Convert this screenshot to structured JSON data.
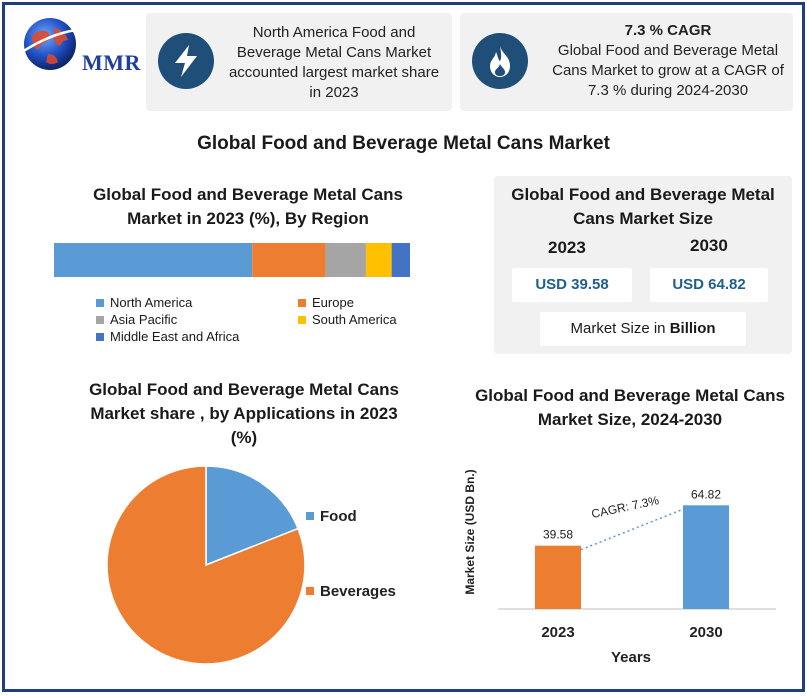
{
  "brand": {
    "logo_text": "MMR"
  },
  "callouts": {
    "region": {
      "icon": "lightning-icon",
      "text": "North America Food and Beverage Metal Cans Market accounted largest market share in 2023"
    },
    "cagr": {
      "icon": "flame-icon",
      "title": "7.3 % CAGR",
      "text": "Global Food and Beverage Metal Cans Market to grow at a CAGR of 7.3 % during 2024-2030"
    }
  },
  "main_title": "Global Food and Beverage Metal Cans Market",
  "market_size": {
    "title": "Global Food and Beverage Metal Cans Market Size",
    "year_a": "2023",
    "year_b": "2030",
    "value_a": "USD 39.58",
    "value_b": "USD 64.82",
    "unit_prefix": "Market Size in ",
    "unit_bold": "Billion"
  },
  "colors": {
    "blue": "#5b9bd5",
    "orange": "#ed7d31",
    "gray": "#a5a5a5",
    "yellow": "#ffc000",
    "darkblue": "#4472c4",
    "navy": "#1f4e79"
  },
  "chart_data": [
    {
      "type": "bar",
      "orientation": "horizontal-stacked",
      "title": "Global Food and Beverage Metal Cans Market in 2023 (%), By Region",
      "legend_position": "bottom",
      "series": [
        {
          "name": "North America",
          "value": 54,
          "color": "#5b9bd5"
        },
        {
          "name": "Europe",
          "value": 20,
          "color": "#ed7d31"
        },
        {
          "name": "Asia Pacific",
          "value": 11,
          "color": "#a5a5a5"
        },
        {
          "name": "South America",
          "value": 7,
          "color": "#ffc000"
        },
        {
          "name": "Middle East and Africa",
          "value": 5,
          "color": "#4472c4"
        }
      ]
    },
    {
      "type": "pie",
      "title": "Global  Food and Beverage Metal Cans Market share , by Applications in 2023  (%)",
      "legend_position": "right",
      "slices": [
        {
          "name": "Food",
          "value": 19,
          "color": "#5b9bd5"
        },
        {
          "name": "Beverages",
          "value": 81,
          "color": "#ed7d31"
        }
      ]
    },
    {
      "type": "bar",
      "title": "Global  Food and Beverage Metal Cans Market Size, 2024-2030",
      "xlabel": "Years",
      "ylabel": "Market Size (USD Bn.)",
      "categories": [
        "2023",
        "2030"
      ],
      "values": [
        39.58,
        64.82
      ],
      "value_labels": [
        "39.58",
        "64.82"
      ],
      "colors": [
        "#ed7d31",
        "#5b9bd5"
      ],
      "ylim": [
        0,
        80
      ],
      "annotation": "CAGR: 7.3%"
    }
  ]
}
